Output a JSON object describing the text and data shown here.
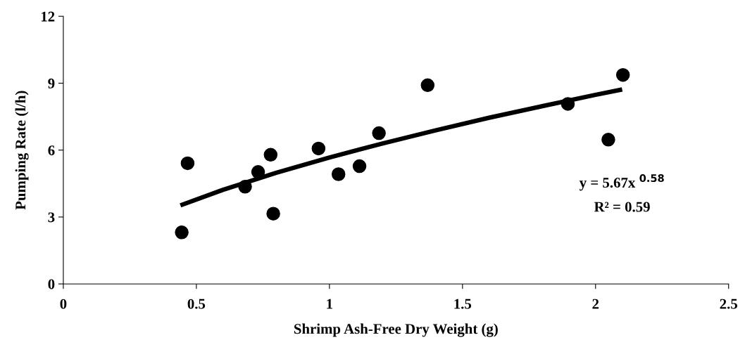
{
  "chart_data": {
    "type": "scatter",
    "xlabel": "Shrimp Ash-Free Dry Weight (g)",
    "ylabel": "Pumping Rate (l/h)",
    "xlim": [
      0,
      2.5
    ],
    "xticks": [
      0,
      0.5,
      1,
      1.5,
      2,
      2.5
    ],
    "ylim": [
      0,
      12
    ],
    "yticks": [
      0,
      3,
      6,
      9,
      12
    ],
    "grid": false,
    "legend": false,
    "marker": "circle",
    "series": [
      {
        "color": "#000000",
        "x": [
          0.445,
          0.467,
          0.683,
          0.732,
          0.779,
          0.789,
          0.959,
          1.034,
          1.113,
          1.186,
          1.369,
          1.896,
          2.048,
          2.103
        ],
        "values": [
          2.31,
          5.41,
          4.36,
          5.02,
          5.79,
          3.15,
          6.07,
          4.92,
          5.28,
          6.76,
          8.91,
          8.07,
          6.47,
          9.37
        ]
      },
      {
        "type": "line",
        "color": "#000000",
        "line_style": "solid",
        "marker": "none",
        "x": [
          0.44,
          0.6,
          0.8,
          1.0,
          1.2,
          1.4,
          1.6,
          1.8,
          2.0,
          2.1
        ],
        "values": [
          3.52,
          4.22,
          4.98,
          5.67,
          6.3,
          6.89,
          7.45,
          7.97,
          8.48,
          8.72
        ]
      }
    ],
    "annotations": [
      "y = 5.67x $^{0.58}$",
      "R² = 0.59"
    ]
  }
}
